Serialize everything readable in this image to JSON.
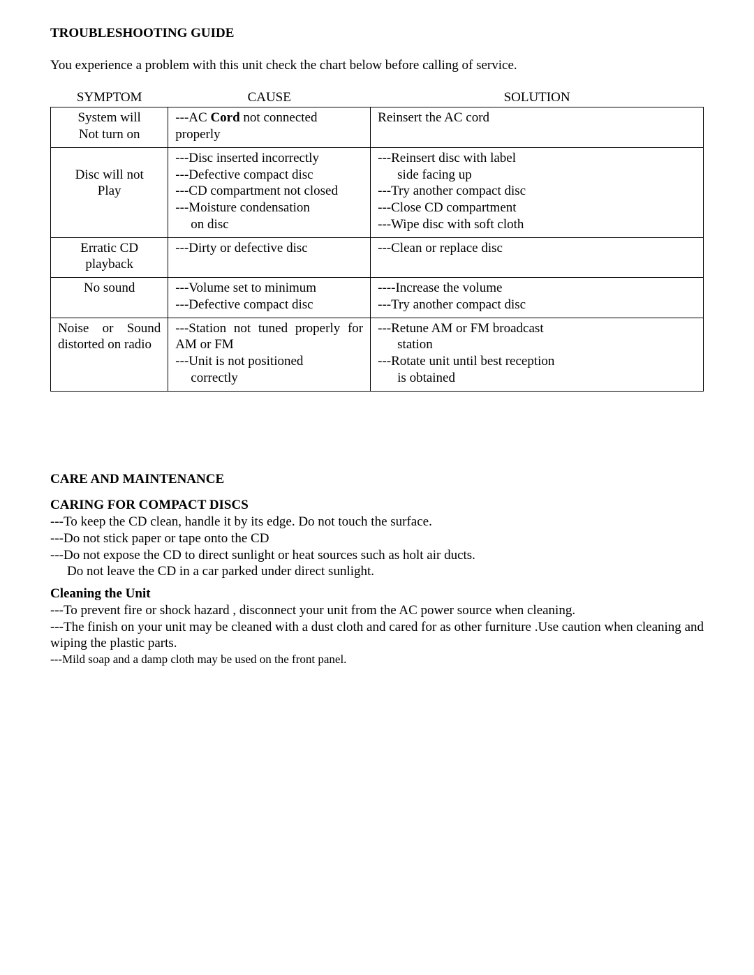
{
  "title": "TROUBLESHOOTING GUIDE",
  "intro": "You experience a problem with this unit check the chart below before calling of service.",
  "table": {
    "headers": {
      "symptom": "SYMPTOM",
      "cause": "CAUSE",
      "solution": "SOLUTION"
    },
    "rows": [
      {
        "symptom_lines": [
          "System will",
          "Not turn on"
        ],
        "symptom_align": "center",
        "cause_html": "---AC <b>Cord</b> not connected <span class=\"cell-line\">properly</span>",
        "solution_html": "Reinsert the AC cord<br><br>"
      },
      {
        "symptom_lines": [
          "",
          "Disc will not",
          "Play"
        ],
        "symptom_align": "center",
        "cause_html": "---Disc inserted incorrectly<span class=\"cell-line\">---Defective compact disc</span><span class=\"cell-line\">---CD compartment not closed</span><span class=\"cell-line\">---Moisture condensation</span><span class=\"cell-line indent\">on disc</span>",
        "solution_html": "---Reinsert disc with label<span class=\"cell-line indent-sol\">side facing up</span><span class=\"cell-line\">---Try another compact disc</span><span class=\"cell-line\">---Close CD compartment</span><span class=\"cell-line\">---Wipe disc with soft cloth</span>"
      },
      {
        "symptom_lines": [
          "Erratic CD",
          "playback"
        ],
        "symptom_align": "center",
        "cause_html": "---Dirty or defective disc",
        "solution_html": "---Clean or replace disc"
      },
      {
        "symptom_lines": [
          "No sound"
        ],
        "symptom_align": "center",
        "cause_html": "---Volume set to minimum<span class=\"cell-line\">---Defective compact disc</span>",
        "solution_html": "----Increase the volume<span class=\"cell-line\">---Try another compact disc</span>"
      },
      {
        "symptom_lines": [
          "Noise or Sound",
          "distorted on radio"
        ],
        "symptom_align": "justify",
        "cause_html": "<span style=\"text-align:justify; text-align-last:justify; display:block;\">---Station not tuned properly for</span><span class=\"cell-line\">AM or FM</span><span class=\"cell-line\">---Unit is not positioned</span><span class=\"cell-line indent\">correctly</span>",
        "solution_html": "---Retune AM or FM broadcast<span class=\"cell-line indent-sol\">station</span><span class=\"cell-line\">---Rotate unit until best reception</span><span class=\"cell-line indent-sol\">is obtained</span>"
      }
    ]
  },
  "care": {
    "heading": "CARE AND MAINTENANCE",
    "discs_heading": "CARING FOR COMPACT DISCS",
    "discs_lines": [
      "---To keep the CD clean, handle it by its edge. Do not touch the surface.",
      "---Do not stick paper or tape onto the CD",
      "---Do not expose the CD to direct sunlight or heat sources such as holt air ducts.",
      "    Do not leave the CD in a car parked under direct sunlight."
    ],
    "cleaning_heading": "Cleaning the Unit",
    "cleaning_lines": [
      {
        "text": "---To prevent fire or shock hazard , disconnect your unit from the AC power source when cleaning.",
        "justify": false,
        "small": false
      },
      {
        "text": "---The finish on your unit may be cleaned with a dust cloth and cared for as other furniture .Use caution when cleaning and wiping the plastic parts.",
        "justify": true,
        "small": false
      },
      {
        "text": "---Mild soap and a damp cloth may be used on the front panel.",
        "justify": false,
        "small": true
      }
    ]
  }
}
